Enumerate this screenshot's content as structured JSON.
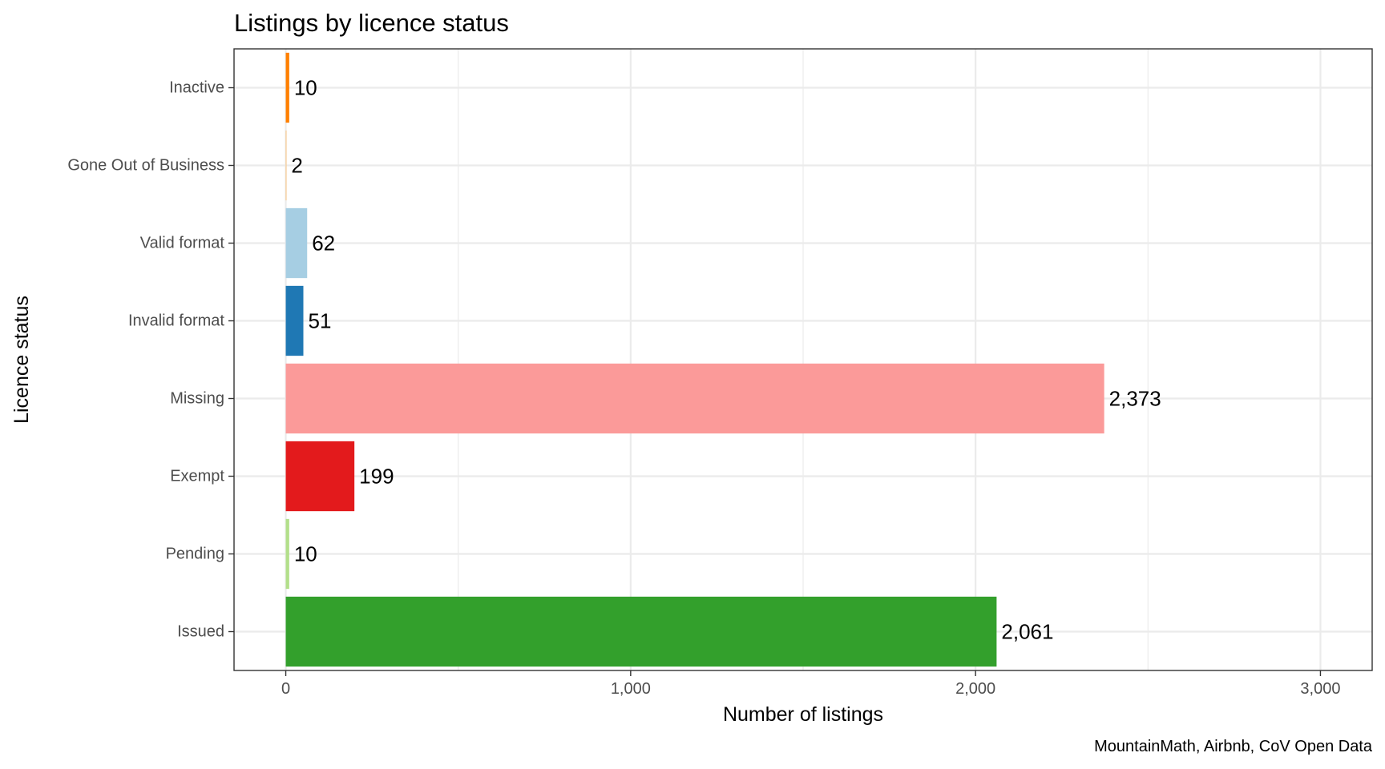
{
  "chart_data": {
    "type": "bar",
    "orientation": "horizontal",
    "title": "Listings by licence status",
    "xlabel": "Number of listings",
    "ylabel": "Licence status",
    "caption": "MountainMath, Airbnb, CoV Open Data",
    "xlim": [
      -150,
      3150
    ],
    "x_ticks": [
      0,
      1000,
      2000,
      3000
    ],
    "x_tick_labels": [
      "0",
      "1,000",
      "2,000",
      "3,000"
    ],
    "grid": true,
    "legend": "none",
    "categories": [
      "Issued",
      "Pending",
      "Exempt",
      "Missing",
      "Invalid format",
      "Valid format",
      "Gone Out of Business",
      "Inactive"
    ],
    "values": [
      2061,
      10,
      199,
      2373,
      51,
      62,
      2,
      10
    ],
    "value_labels": [
      "2,061",
      "10",
      "199",
      "2,373",
      "51",
      "62",
      "2",
      "10"
    ],
    "colors": [
      "#33a02c",
      "#b2df8a",
      "#e31a1c",
      "#fb9a99",
      "#1f78b4",
      "#a6cee3",
      "#fdbf6f",
      "#ff7f00"
    ]
  }
}
